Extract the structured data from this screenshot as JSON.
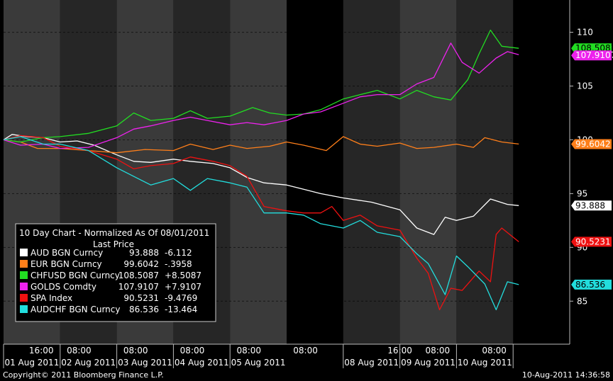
{
  "chart_data": {
    "type": "line",
    "title": "10 Day Chart - Normalized As Of 08/01/2011",
    "subtitle": "Last Price",
    "ylim": [
      81,
      113
    ],
    "y_ticks": [
      {
        "value": 110,
        "label": "110"
      },
      {
        "value": 105,
        "label": "105"
      },
      {
        "value": 100,
        "label": "100"
      },
      {
        "value": 95,
        "label": "95"
      },
      {
        "value": 90,
        "label": "90"
      },
      {
        "value": 85,
        "label": "85"
      }
    ],
    "x_range_days": [
      0,
      10
    ],
    "time_ticks": [
      {
        "t": 0.667,
        "label": "16:00"
      },
      {
        "t": 1.333,
        "label": "08:00"
      },
      {
        "t": 2.333,
        "label": "08:00"
      },
      {
        "t": 3.333,
        "label": "08:00"
      },
      {
        "t": 4.333,
        "label": "08:00"
      },
      {
        "t": 5.333,
        "label": "08:00"
      },
      {
        "t": 7.0,
        "label": "16:00"
      },
      {
        "t": 7.667,
        "label": "08:00"
      },
      {
        "t": 8.667,
        "label": "08:00"
      }
    ],
    "date_labels": [
      {
        "t": 0.5,
        "label": "01 Aug 2011"
      },
      {
        "t": 1.5,
        "label": "02 Aug 2011"
      },
      {
        "t": 2.5,
        "label": "03 Aug 2011"
      },
      {
        "t": 3.5,
        "label": "04 Aug 2011"
      },
      {
        "t": 4.5,
        "label": "05 Aug 2011"
      },
      {
        "t": 6.5,
        "label": "08 Aug 2011"
      },
      {
        "t": 7.5,
        "label": "09 Aug 2011"
      },
      {
        "t": 8.5,
        "label": "10 Aug 2011"
      }
    ],
    "series": [
      {
        "name": "AUD BGN Curncy",
        "last": "93.888",
        "change": "-6.112",
        "color": "#ffffff",
        "points": [
          [
            0,
            100
          ],
          [
            0.15,
            100.5
          ],
          [
            0.4,
            100.3
          ],
          [
            0.7,
            100.2
          ],
          [
            1.0,
            99.8
          ],
          [
            1.3,
            99.9
          ],
          [
            1.6,
            99.5
          ],
          [
            2.0,
            98.6
          ],
          [
            2.3,
            98.0
          ],
          [
            2.6,
            97.9
          ],
          [
            3.0,
            98.2
          ],
          [
            3.3,
            98.0
          ],
          [
            3.7,
            97.8
          ],
          [
            4.0,
            97.4
          ],
          [
            4.3,
            96.5
          ],
          [
            4.6,
            96.0
          ],
          [
            5.0,
            95.8
          ],
          [
            5.3,
            95.4
          ],
          [
            5.6,
            95.0
          ],
          [
            6.0,
            94.6
          ],
          [
            6.5,
            94.2
          ],
          [
            7.0,
            93.5
          ],
          [
            7.3,
            91.8
          ],
          [
            7.6,
            91.2
          ],
          [
            7.8,
            92.8
          ],
          [
            8.0,
            92.5
          ],
          [
            8.3,
            92.9
          ],
          [
            8.6,
            94.5
          ],
          [
            8.9,
            94.0
          ],
          [
            9.1,
            93.888
          ]
        ]
      },
      {
        "name": "EUR BGN Curncy",
        "last": "99.6042",
        "change": "-.3958",
        "color": "#ff7f1a",
        "points": [
          [
            0,
            100
          ],
          [
            0.3,
            99.8
          ],
          [
            0.6,
            99.2
          ],
          [
            1.0,
            99.2
          ],
          [
            1.5,
            99.0
          ],
          [
            2.0,
            98.8
          ],
          [
            2.5,
            99.1
          ],
          [
            3.0,
            99.0
          ],
          [
            3.3,
            99.6
          ],
          [
            3.7,
            99.1
          ],
          [
            4.0,
            99.5
          ],
          [
            4.3,
            99.2
          ],
          [
            4.7,
            99.4
          ],
          [
            5.0,
            99.8
          ],
          [
            5.3,
            99.5
          ],
          [
            5.7,
            99.0
          ],
          [
            6.0,
            100.3
          ],
          [
            6.3,
            99.6
          ],
          [
            6.6,
            99.4
          ],
          [
            7.0,
            99.7
          ],
          [
            7.3,
            99.2
          ],
          [
            7.6,
            99.3
          ],
          [
            8.0,
            99.6
          ],
          [
            8.3,
            99.3
          ],
          [
            8.5,
            100.2
          ],
          [
            8.8,
            99.8
          ],
          [
            9.1,
            99.6042
          ]
        ]
      },
      {
        "name": "CHFUSD BGN Curncy",
        "last": "108.5087",
        "change": "+8.5087",
        "color": "#22dd22",
        "points": [
          [
            0,
            100
          ],
          [
            0.3,
            99.8
          ],
          [
            0.7,
            100.2
          ],
          [
            1.0,
            100.3
          ],
          [
            1.5,
            100.6
          ],
          [
            2.0,
            101.3
          ],
          [
            2.3,
            102.5
          ],
          [
            2.6,
            101.8
          ],
          [
            3.0,
            102.0
          ],
          [
            3.3,
            102.7
          ],
          [
            3.6,
            102.0
          ],
          [
            4.0,
            102.2
          ],
          [
            4.4,
            103.0
          ],
          [
            4.7,
            102.5
          ],
          [
            5.0,
            102.3
          ],
          [
            5.3,
            102.4
          ],
          [
            5.6,
            102.8
          ],
          [
            6.0,
            103.8
          ],
          [
            6.3,
            104.2
          ],
          [
            6.6,
            104.6
          ],
          [
            7.0,
            103.8
          ],
          [
            7.3,
            104.6
          ],
          [
            7.6,
            104.0
          ],
          [
            7.9,
            103.7
          ],
          [
            8.2,
            105.6
          ],
          [
            8.4,
            108.0
          ],
          [
            8.6,
            110.2
          ],
          [
            8.8,
            108.7
          ],
          [
            9.1,
            108.5087
          ]
        ]
      },
      {
        "name": "GOLDS Comdty",
        "last": "107.9107",
        "change": "+7.9107",
        "color": "#ee22ee",
        "points": [
          [
            0,
            100
          ],
          [
            0.3,
            99.5
          ],
          [
            0.7,
            99.6
          ],
          [
            1.0,
            99.2
          ],
          [
            1.5,
            99.3
          ],
          [
            2.0,
            100.2
          ],
          [
            2.3,
            101.0
          ],
          [
            2.6,
            101.3
          ],
          [
            3.0,
            101.8
          ],
          [
            3.3,
            102.1
          ],
          [
            3.6,
            101.8
          ],
          [
            4.0,
            101.4
          ],
          [
            4.3,
            101.6
          ],
          [
            4.6,
            101.4
          ],
          [
            5.0,
            101.8
          ],
          [
            5.3,
            102.4
          ],
          [
            5.6,
            102.6
          ],
          [
            6.0,
            103.4
          ],
          [
            6.3,
            104.0
          ],
          [
            6.6,
            104.2
          ],
          [
            7.0,
            104.2
          ],
          [
            7.3,
            105.2
          ],
          [
            7.6,
            105.8
          ],
          [
            7.9,
            109.0
          ],
          [
            8.1,
            107.2
          ],
          [
            8.4,
            106.2
          ],
          [
            8.7,
            107.6
          ],
          [
            8.9,
            108.2
          ],
          [
            9.1,
            107.9107
          ]
        ]
      },
      {
        "name": "SPA Index",
        "last": "90.5231",
        "change": "-9.4769",
        "color": "#ee1111",
        "points": [
          [
            0,
            100
          ],
          [
            0.3,
            100.4
          ],
          [
            0.7,
            100.2
          ],
          [
            1.0,
            99.4
          ],
          [
            1.5,
            99.0
          ],
          [
            2.0,
            98.2
          ],
          [
            2.3,
            97.3
          ],
          [
            2.6,
            97.6
          ],
          [
            3.0,
            97.8
          ],
          [
            3.3,
            98.4
          ],
          [
            3.7,
            98.0
          ],
          [
            4.0,
            97.6
          ],
          [
            4.3,
            96.6
          ],
          [
            4.6,
            93.8
          ],
          [
            5.0,
            93.4
          ],
          [
            5.3,
            93.2
          ],
          [
            5.6,
            93.2
          ],
          [
            5.8,
            93.8
          ],
          [
            6.0,
            92.5
          ],
          [
            6.3,
            93.0
          ],
          [
            6.6,
            92.0
          ],
          [
            7.0,
            91.6
          ],
          [
            7.3,
            89.0
          ],
          [
            7.5,
            87.6
          ],
          [
            7.7,
            84.2
          ],
          [
            7.9,
            86.2
          ],
          [
            8.1,
            86.0
          ],
          [
            8.4,
            87.8
          ],
          [
            8.6,
            86.8
          ],
          [
            8.7,
            91.2
          ],
          [
            8.8,
            91.8
          ],
          [
            9.1,
            90.5231
          ]
        ]
      },
      {
        "name": "AUDCHF BGN Curncy",
        "last": "86.536",
        "change": "-13.464",
        "color": "#22dddd",
        "points": [
          [
            0,
            100
          ],
          [
            0.3,
            100.3
          ],
          [
            0.7,
            99.6
          ],
          [
            1.0,
            99.6
          ],
          [
            1.5,
            99.0
          ],
          [
            2.0,
            97.4
          ],
          [
            2.3,
            96.6
          ],
          [
            2.6,
            95.8
          ],
          [
            3.0,
            96.4
          ],
          [
            3.3,
            95.3
          ],
          [
            3.6,
            96.4
          ],
          [
            4.0,
            96.0
          ],
          [
            4.3,
            95.6
          ],
          [
            4.6,
            93.2
          ],
          [
            5.0,
            93.2
          ],
          [
            5.3,
            93.0
          ],
          [
            5.6,
            92.2
          ],
          [
            6.0,
            91.8
          ],
          [
            6.3,
            92.5
          ],
          [
            6.6,
            91.4
          ],
          [
            7.0,
            91.0
          ],
          [
            7.3,
            89.4
          ],
          [
            7.5,
            88.5
          ],
          [
            7.8,
            85.6
          ],
          [
            8.0,
            89.2
          ],
          [
            8.2,
            88.2
          ],
          [
            8.5,
            86.6
          ],
          [
            8.7,
            84.2
          ],
          [
            8.9,
            86.8
          ],
          [
            9.1,
            86.536
          ]
        ]
      }
    ]
  },
  "footer": {
    "copyright": "Copyright© 2011 Bloomberg Finance L.P.",
    "timestamp": "10-Aug-2011 14:36:58"
  }
}
